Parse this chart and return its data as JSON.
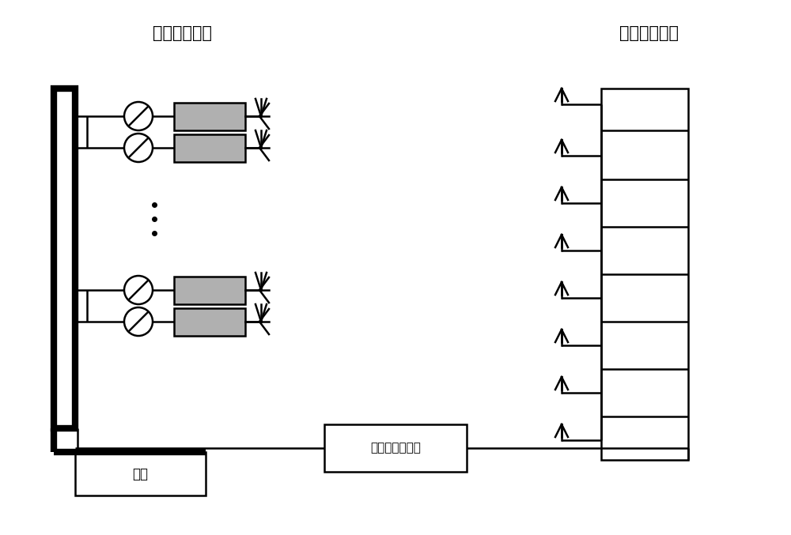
{
  "title_left": "待测阵列天线",
  "title_right": "平面波生成器",
  "label_vna": "矢量网络分析仪",
  "label_power": "电源",
  "bg_color": "#ffffff",
  "line_color": "#000000",
  "box_color": "#b0b0b0",
  "lw": 1.8,
  "lw_thick": 6.0,
  "fig_w": 10.0,
  "fig_h": 6.77
}
